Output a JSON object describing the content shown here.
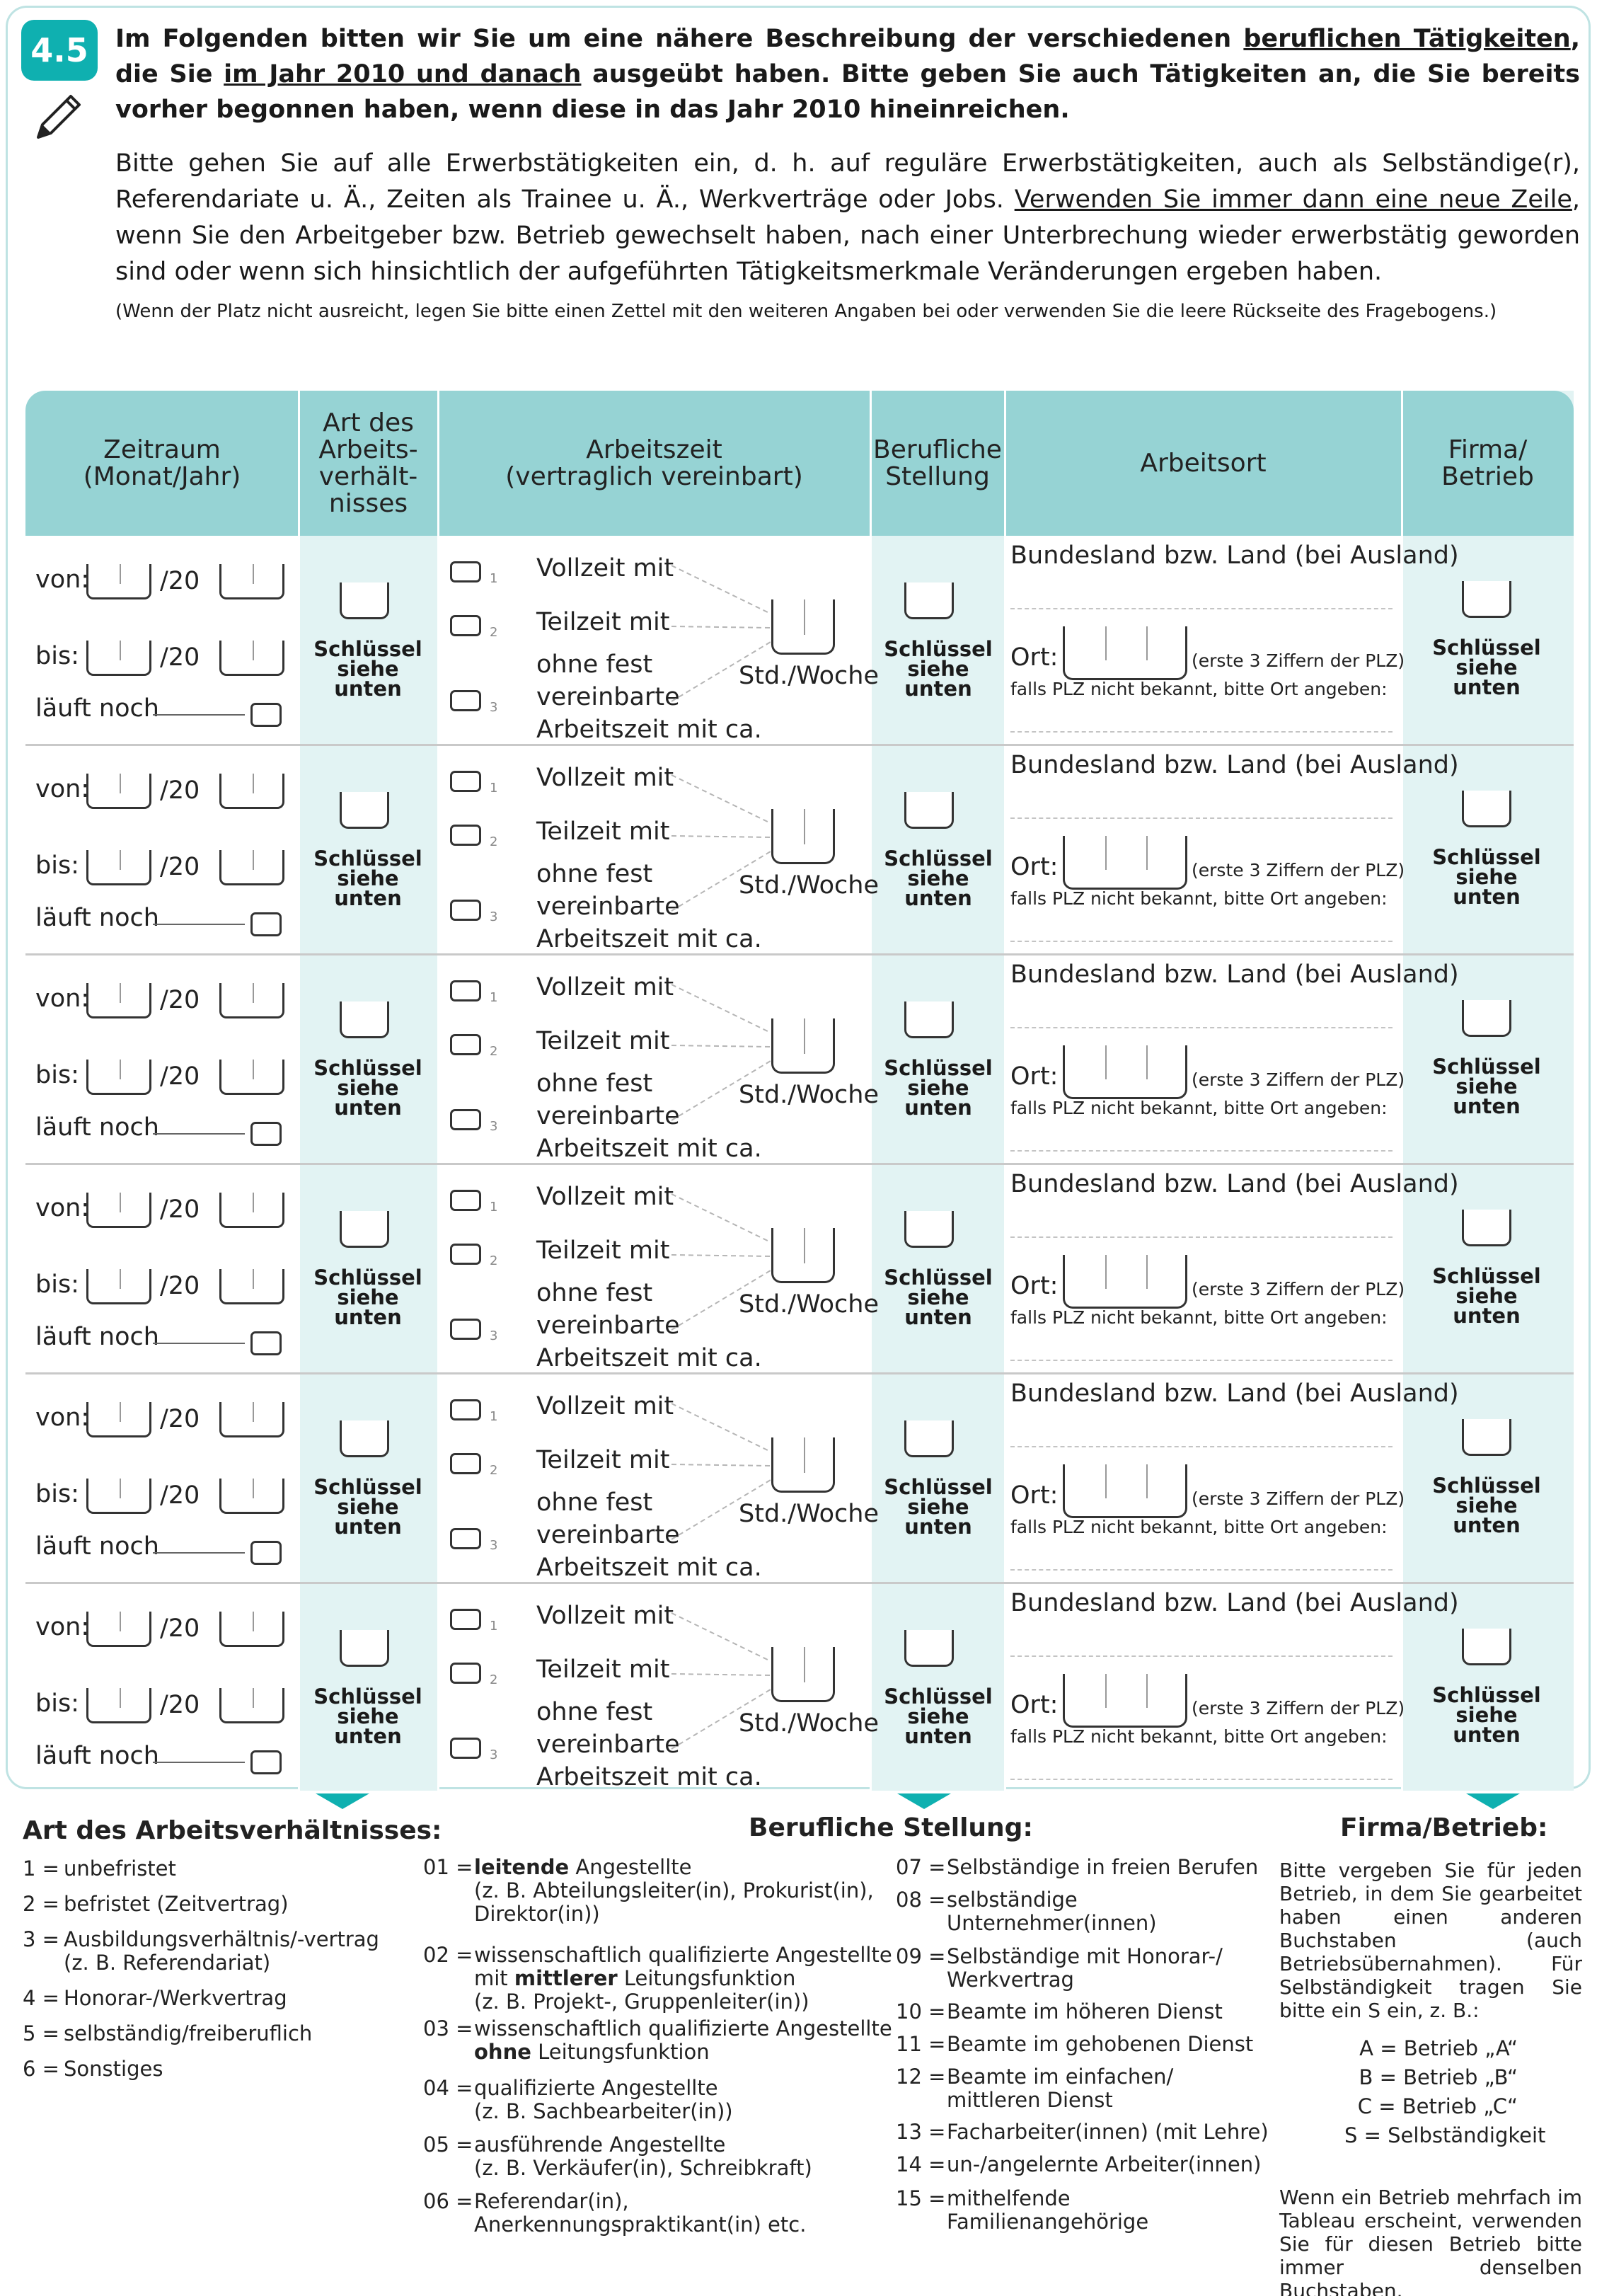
{
  "question": {
    "number": "4.5",
    "intro_parts": [
      "Im Folgenden bitten wir Sie um eine nähere Beschreibung der verschiedenen ",
      "beruflichen Tätigkeiten",
      ", die Sie ",
      "im Jahr 2010 und danach",
      " ausgeübt haben. Bitte geben Sie auch Tätigkeiten an, die Sie bereits vorher begonnen haben, wenn diese in das Jahr 2010 hineinreichen."
    ],
    "body_parts": [
      "Bitte gehen Sie auf alle Erwerbstätigkeiten ein, d. h. auf reguläre Erwerbstätigkeiten, auch als Selbständige(r), Referendariate u. Ä., Zeiten als Trainee u. Ä., Werkverträge oder Jobs. ",
      "Verwenden Sie immer dann eine neue Zeile",
      ", wenn Sie den Arbeitgeber bzw. Betrieb gewechselt haben, nach einer Unterbrechung wieder erwerbstätig geworden sind oder wenn sich hinsichtlich der aufgeführten Tätigkeitsmerkmale Veränderungen ergeben haben."
    ],
    "note": "(Wenn der Platz nicht ausreicht, legen Sie bitte einen Zettel mit den weiteren Angaben bei oder verwenden Sie die leere Rückseite des Fragebogens.)"
  },
  "table": {
    "headers": [
      "Zeitraum\n(Monat/Jahr)",
      "Art des\nArbeits-\nverhält-\nnisses",
      "Arbeitszeit\n(vertraglich vereinbart)",
      "Berufliche\nStellung",
      "Arbeitsort",
      "Firma/\nBetrieb"
    ],
    "row": {
      "von": "von:",
      "bis": "bis:",
      "year_prefix": "/20",
      "laeuft": "läuft noch",
      "key_label": "Schlüssel\nsiehe\nunten",
      "vollzeit": "Vollzeit mit",
      "teilzeit": "Teilzeit mit",
      "ohne1": "ohne fest",
      "ohne2": "vereinbarte",
      "ohne3": "Arbeitszeit mit ca.",
      "std": "Std./Woche",
      "code1": "1",
      "code2": "2",
      "code3": "3",
      "bundesland": "Bundesland bzw. Land (bei Ausland)",
      "ort": "Ort:",
      "plz_hint": "(erste 3 Ziffern der PLZ)",
      "plz_fallback": "falls PLZ nicht bekannt, bitte Ort angeben:"
    }
  },
  "legend_art": {
    "title": "Art des Arbeitsverhältnisses:",
    "items": [
      {
        "num": "1 =",
        "text": "unbefristet"
      },
      {
        "num": "2 =",
        "text": "befristet (Zeitvertrag)"
      },
      {
        "num": "3 =",
        "text": "Ausbildungsverhältnis/-vertrag\n(z. B. Referendariat)"
      },
      {
        "num": "4 =",
        "text": "Honorar-/Werkvertrag"
      },
      {
        "num": "5 =",
        "text": "selbständig/freiberuflich"
      },
      {
        "num": "6 =",
        "text": "Sonstiges"
      }
    ]
  },
  "legend_stellung": {
    "title": "Berufliche Stellung:",
    "left": [
      {
        "num": "01 =",
        "pre": "",
        "bold": "leitende",
        "text": " Angestellte\n(z. B. Abteilungsleiter(in), Prokurist(in),\nDirektor(in))"
      },
      {
        "num": "02 =",
        "pre": "wissenschaftlich qualifizierte Angestellte\nmit ",
        "bold": "mittlerer",
        "text": " Leitungsfunktion\n(z. B. Projekt-, Gruppenleiter(in))"
      },
      {
        "num": "03 =",
        "pre": "wissenschaftlich qualifizierte Angestellte\n",
        "bold": "ohne",
        "text": " Leitungsfunktion"
      },
      {
        "num": "04 =",
        "pre": "",
        "bold": "",
        "text": "qualifizierte Angestellte\n(z. B. Sachbearbeiter(in))"
      },
      {
        "num": "05 =",
        "pre": "",
        "bold": "",
        "text": "ausführende Angestellte\n(z. B. Verkäufer(in), Schreibkraft)"
      },
      {
        "num": "06 =",
        "pre": "",
        "bold": "",
        "text": "Referendar(in),\nAnerkennungspraktikant(in) etc."
      }
    ],
    "right": [
      {
        "num": "07 =",
        "text": "Selbständige in freien Berufen"
      },
      {
        "num": "08 =",
        "text": "selbständige\nUnternehmer(innen)"
      },
      {
        "num": "09 =",
        "text": "Selbständige mit Honorar-/\nWerkvertrag"
      },
      {
        "num": "10 =",
        "text": "Beamte im höheren Dienst"
      },
      {
        "num": "11 =",
        "text": "Beamte im gehobenen Dienst"
      },
      {
        "num": "12 =",
        "text": "Beamte im einfachen/\nmittleren Dienst"
      },
      {
        "num": "13 =",
        "text": "Facharbeiter(innen) (mit Lehre)"
      },
      {
        "num": "14 =",
        "text": "un-/angelernte Arbeiter(innen)"
      },
      {
        "num": "15 =",
        "text": "mithelfende\nFamilienangehörige"
      }
    ]
  },
  "legend_firma": {
    "title": "Firma/Betrieb:",
    "text": "Bitte vergeben Sie für jeden Betrieb, in dem Sie gearbeitet haben einen anderen Buchstaben (auch Betriebsübernahmen). Für Selbständigkeit tragen Sie bitte ein S ein, z. B.:",
    "examples": [
      "A = Betrieb „A“",
      "B = Betrieb „B“",
      "C = Betrieb „C“",
      "S = Selbständigkeit"
    ],
    "footer": "Wenn ein Betrieb mehrfach im Tableau erscheint, verwenden Sie für diesen Betrieb bitte immer denselben Buchstaben."
  },
  "colors": {
    "accent": "#0fb0b0",
    "header": "#96d3d4",
    "column_tint": "#e2f3f3"
  }
}
